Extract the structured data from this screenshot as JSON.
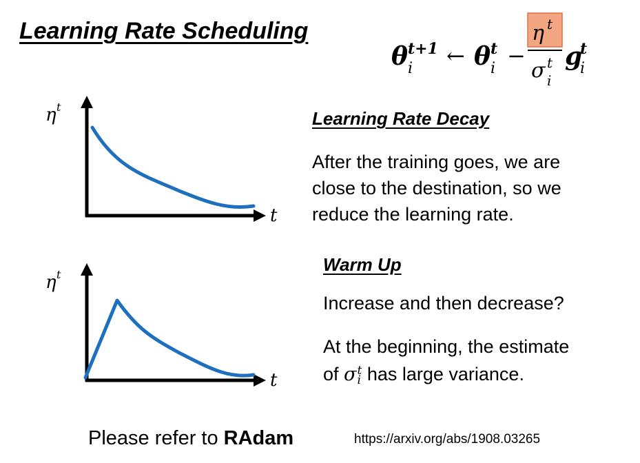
{
  "title": "Learning Rate Scheduling",
  "formula": {
    "lhs_symbol": "θ",
    "lhs_sub": "i",
    "lhs_sup": "t+1",
    "arrow": "←",
    "theta_symbol": "θ",
    "theta_sub": "i",
    "theta_sup": "t",
    "minus": "−",
    "numerator_symbol": "η",
    "numerator_sup": "t",
    "denominator_symbol": "σ",
    "denominator_sub": "i",
    "denominator_sup": "t",
    "g_symbol": "g",
    "g_sub": "i",
    "g_sup": "t",
    "highlight_color": "#f4a582"
  },
  "decay": {
    "heading": "Learning Rate Decay",
    "lines": [
      "After the training goes, we are",
      "close to the destination, so we",
      "reduce the learning rate."
    ]
  },
  "warmup": {
    "heading": "Warm Up",
    "line1": "Increase and then decrease?",
    "line2": "At the beginning, the estimate",
    "line3_pre": "of ",
    "line3_symbol": "σ",
    "line3_sub": "i",
    "line3_sup": "t",
    "line3_post": " has large variance."
  },
  "plot_decay": {
    "ylabel_symbol": "η",
    "ylabel_sup": "t",
    "xlabel": "t",
    "curve_color": "#1f6fbf"
  },
  "plot_warmup": {
    "ylabel_symbol": "η",
    "ylabel_sup": "t",
    "xlabel": "t",
    "curve_color": "#1f6fbf"
  },
  "footer": {
    "refer_prefix": "Please refer to ",
    "refer_bold": "RAdam",
    "url": "https://arxiv.org/abs/1908.03265"
  }
}
